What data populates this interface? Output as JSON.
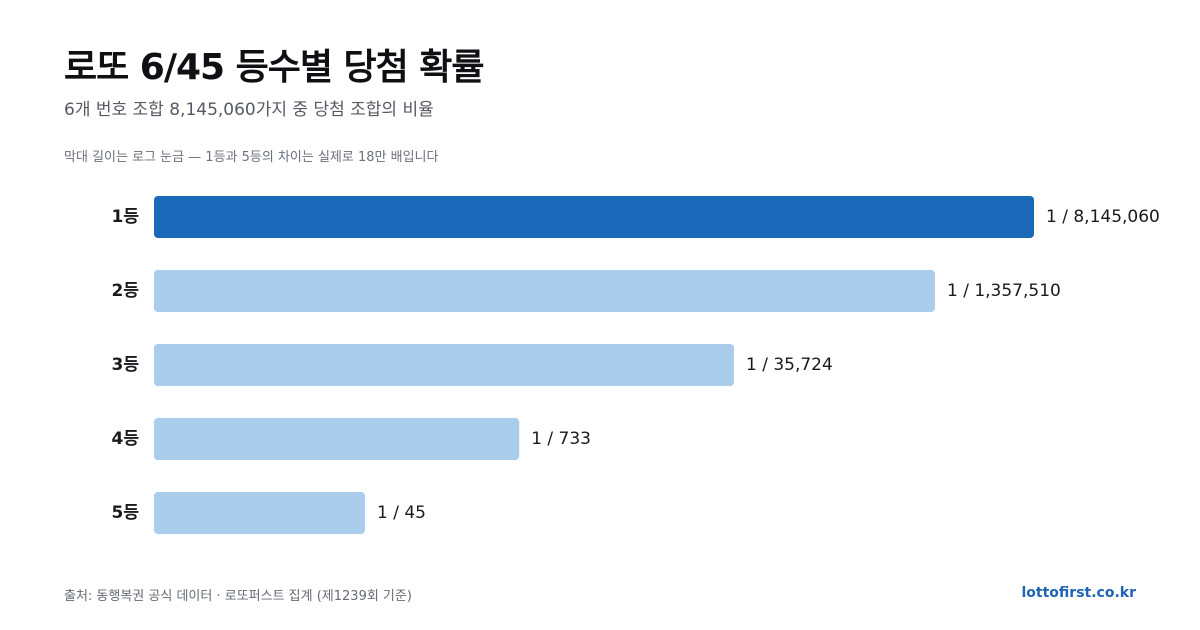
{
  "header": {
    "title": "로또 6/45 등수별 당첨 확률",
    "subtitle": "6개 번호 조합 8,145,060가지 중 당첨 조합의 비율",
    "note": "막대 길이는 로그 눈금 — 1등과 5등의 차이는 실제로 18만 배입니다"
  },
  "chart_data": {
    "type": "bar",
    "orientation": "horizontal",
    "scale": "log",
    "categories": [
      "1등",
      "2등",
      "3등",
      "4등",
      "5등"
    ],
    "values": [
      8145060,
      1357510,
      35724,
      733,
      45
    ],
    "value_labels": [
      "1 / 8,145,060",
      "1 / 1,357,510",
      "1 / 35,724",
      "1 / 733",
      "1 / 45"
    ],
    "highlight_index": 0,
    "colors": {
      "highlight": "#1a68b8",
      "default": "#a9cdea"
    },
    "grid": false,
    "legend": "none"
  },
  "footer": {
    "source": "출처: 동행복권 공식 데이터 · 로또퍼스트 집계 (제1239회 기준)",
    "brand": "lottofirst.co.kr"
  }
}
